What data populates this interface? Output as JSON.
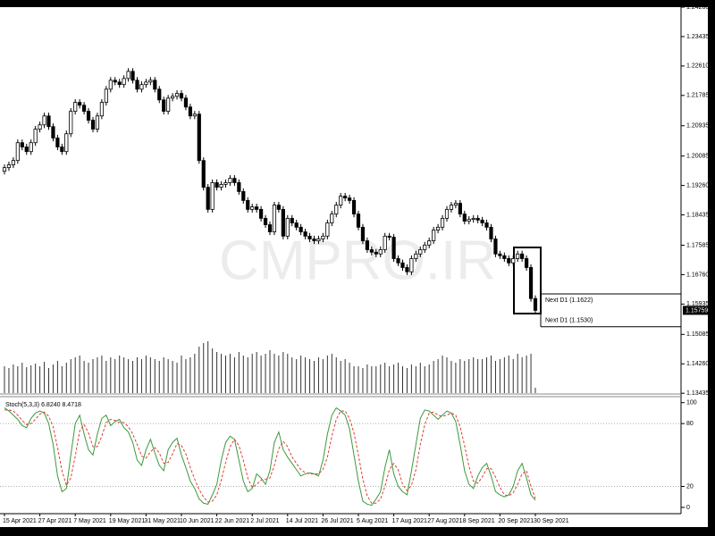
{
  "chart_data": [
    {
      "type": "candlestick",
      "categories": [
        "15 Apr 2021",
        null,
        null,
        null,
        null,
        null,
        null,
        null,
        "27 Apr 2021",
        null,
        null,
        null,
        null,
        null,
        null,
        null,
        "7 May 2021",
        null,
        null,
        null,
        null,
        null,
        null,
        null,
        "19 May 2021",
        null,
        null,
        null,
        null,
        null,
        null,
        null,
        "31 May 2021",
        null,
        null,
        null,
        null,
        null,
        null,
        null,
        "10 Jun 2021",
        null,
        null,
        null,
        null,
        null,
        null,
        null,
        "22 Jun 2021",
        null,
        null,
        null,
        null,
        null,
        null,
        null,
        "2 Jul 2021",
        null,
        null,
        null,
        null,
        null,
        null,
        null,
        "14 Jul 2021",
        null,
        null,
        null,
        null,
        null,
        null,
        null,
        "26 Jul 2021",
        null,
        null,
        null,
        null,
        null,
        null,
        null,
        "5 Aug 2021",
        null,
        null,
        null,
        null,
        null,
        null,
        null,
        "17 Aug 2021",
        null,
        null,
        null,
        null,
        null,
        null,
        null,
        "27 Aug 2021",
        null,
        null,
        null,
        null,
        null,
        null,
        null,
        "8 Sep 2021",
        null,
        null,
        null,
        null,
        null,
        null,
        null,
        "20 Sep 2021",
        null,
        null,
        null,
        null,
        null,
        null,
        null,
        "30 Sep 2021"
      ],
      "open": [
        1.1966,
        1.1976,
        1.1984,
        1.1996,
        1.2046,
        1.2034,
        1.2021,
        1.2046,
        1.2084,
        1.2096,
        1.2121,
        1.2091,
        1.2059,
        1.2034,
        1.2021,
        1.2071,
        1.2134,
        1.2159,
        1.2151,
        1.2134,
        1.2109,
        1.2084,
        1.2121,
        1.2159,
        1.2196,
        1.2221,
        1.2216,
        1.2209,
        1.2226,
        1.2246,
        1.2221,
        1.2196,
        1.2209,
        1.2216,
        1.2221,
        1.2196,
        1.2166,
        1.2134,
        1.2171,
        1.2176,
        1.2184,
        1.2171,
        1.2146,
        1.2121,
        1.2126,
        1.1996,
        1.1921,
        1.1859,
        1.1934,
        1.1921,
        1.1929,
        1.1934,
        1.1946,
        1.1934,
        1.1909,
        1.1884,
        1.1859,
        1.1866,
        1.1859,
        1.1834,
        1.1816,
        1.1796,
        1.1871,
        1.1859,
        1.1784,
        1.1834,
        1.1821,
        1.1809,
        1.1796,
        1.1784,
        1.1776,
        1.1771,
        1.1776,
        1.1784,
        1.1821,
        1.1846,
        1.1871,
        1.1896,
        1.1891,
        1.1884,
        1.1846,
        1.1809,
        1.1771,
        1.1746,
        1.1739,
        1.1734,
        1.1746,
        1.1784,
        1.1781,
        1.1721,
        1.1709,
        1.1696,
        1.1684,
        1.1721,
        1.1734,
        1.1746,
        1.1759,
        1.1771,
        1.1801,
        1.1809,
        1.1834,
        1.1859,
        1.1871,
        1.1876,
        1.1846,
        1.1826,
        1.1831,
        1.1834,
        1.1829,
        1.1821,
        1.1809,
        1.1776,
        1.1734,
        1.1729,
        1.1721,
        1.1709,
        1.1721,
        1.1734,
        1.1721,
        1.1696,
        1.1609
      ],
      "high": [
        1.1985,
        1.1993,
        1.2005,
        1.2055,
        1.2055,
        1.2043,
        1.2055,
        1.2093,
        1.2105,
        1.213,
        1.213,
        1.21,
        1.2068,
        1.2043,
        1.208,
        1.2143,
        1.2168,
        1.2168,
        1.216,
        1.2143,
        1.2118,
        1.213,
        1.2168,
        1.2205,
        1.223,
        1.223,
        1.2225,
        1.2235,
        1.2255,
        1.2255,
        1.223,
        1.2218,
        1.2225,
        1.223,
        1.223,
        1.2205,
        1.2175,
        1.218,
        1.2185,
        1.2193,
        1.2193,
        1.218,
        1.2155,
        1.2135,
        1.2135,
        1.2005,
        1.193,
        1.1943,
        1.1943,
        1.1938,
        1.1943,
        1.1955,
        1.1955,
        1.1943,
        1.1918,
        1.1893,
        1.1875,
        1.1875,
        1.1868,
        1.1843,
        1.1825,
        1.188,
        1.188,
        1.1868,
        1.1843,
        1.1843,
        1.183,
        1.1818,
        1.1805,
        1.1793,
        1.1785,
        1.1785,
        1.1793,
        1.183,
        1.1855,
        1.188,
        1.1905,
        1.1905,
        1.19,
        1.1893,
        1.1855,
        1.1818,
        1.178,
        1.1755,
        1.1748,
        1.1755,
        1.1793,
        1.1793,
        1.179,
        1.173,
        1.1718,
        1.1705,
        1.173,
        1.1743,
        1.1755,
        1.1768,
        1.178,
        1.181,
        1.1818,
        1.1843,
        1.1868,
        1.188,
        1.1885,
        1.1885,
        1.1855,
        1.184,
        1.1843,
        1.1843,
        1.1838,
        1.183,
        1.1818,
        1.1785,
        1.1743,
        1.1738,
        1.173,
        1.173,
        1.1743,
        1.1743,
        1.173,
        1.1705,
        1.1618
      ],
      "low": [
        1.1957,
        1.1967,
        1.1975,
        1.1987,
        1.2025,
        1.2012,
        1.2012,
        1.2037,
        1.2075,
        1.2087,
        1.2082,
        1.205,
        1.2025,
        1.2012,
        1.2012,
        1.2062,
        1.2125,
        1.2142,
        1.2125,
        1.21,
        1.2075,
        1.2075,
        1.2112,
        1.215,
        1.2187,
        1.2207,
        1.22,
        1.22,
        1.2217,
        1.2212,
        1.2187,
        1.2187,
        1.22,
        1.2207,
        1.2187,
        1.2157,
        1.2125,
        1.2125,
        1.2162,
        1.2167,
        1.2162,
        1.2137,
        1.2112,
        1.2112,
        1.1987,
        1.1912,
        1.185,
        1.185,
        1.1912,
        1.1912,
        1.192,
        1.1925,
        1.1925,
        1.19,
        1.1875,
        1.185,
        1.185,
        1.185,
        1.1825,
        1.1807,
        1.1787,
        1.1787,
        1.185,
        1.1775,
        1.1775,
        1.1812,
        1.18,
        1.1787,
        1.1775,
        1.1767,
        1.1762,
        1.1762,
        1.1767,
        1.1775,
        1.1812,
        1.1837,
        1.1862,
        1.1882,
        1.1875,
        1.1837,
        1.18,
        1.1762,
        1.1737,
        1.173,
        1.1725,
        1.1725,
        1.1737,
        1.1772,
        1.1712,
        1.17,
        1.1687,
        1.1675,
        1.1675,
        1.1712,
        1.1725,
        1.1737,
        1.175,
        1.1762,
        1.1792,
        1.18,
        1.1825,
        1.185,
        1.1862,
        1.1837,
        1.1817,
        1.1817,
        1.1822,
        1.182,
        1.1812,
        1.18,
        1.1767,
        1.1725,
        1.172,
        1.1712,
        1.17,
        1.17,
        1.1712,
        1.1712,
        1.1687,
        1.16,
        1.1567
      ],
      "close": [
        1.1976,
        1.1984,
        1.1996,
        1.2046,
        1.2034,
        1.2021,
        1.2046,
        1.2084,
        1.2096,
        1.2121,
        1.2091,
        1.2059,
        1.2034,
        1.2021,
        1.2071,
        1.2134,
        1.2159,
        1.2151,
        1.2134,
        1.2109,
        1.2084,
        1.2121,
        1.2159,
        1.2196,
        1.2221,
        1.2216,
        1.2209,
        1.2226,
        1.2246,
        1.2221,
        1.2196,
        1.2209,
        1.2216,
        1.2221,
        1.2196,
        1.2166,
        1.2134,
        1.2171,
        1.2176,
        1.2184,
        1.2171,
        1.2146,
        1.2121,
        1.2126,
        1.1996,
        1.1921,
        1.1859,
        1.1934,
        1.1921,
        1.1929,
        1.1934,
        1.1946,
        1.1934,
        1.1909,
        1.1884,
        1.1859,
        1.1866,
        1.1859,
        1.1834,
        1.1816,
        1.1796,
        1.1871,
        1.1859,
        1.1784,
        1.1834,
        1.1821,
        1.1809,
        1.1796,
        1.1784,
        1.1776,
        1.1771,
        1.1776,
        1.1784,
        1.1821,
        1.1846,
        1.1871,
        1.1896,
        1.1891,
        1.1884,
        1.1846,
        1.1809,
        1.1771,
        1.1746,
        1.1739,
        1.1734,
        1.1746,
        1.1784,
        1.1781,
        1.1721,
        1.1709,
        1.1696,
        1.1684,
        1.1721,
        1.1734,
        1.1746,
        1.1759,
        1.1771,
        1.1801,
        1.1809,
        1.1834,
        1.1859,
        1.1871,
        1.1876,
        1.1846,
        1.1826,
        1.1831,
        1.1834,
        1.1829,
        1.1821,
        1.1809,
        1.1776,
        1.1734,
        1.1729,
        1.1721,
        1.1709,
        1.1721,
        1.1734,
        1.1721,
        1.1696,
        1.1609,
        1.15759
      ],
      "volume": [
        30,
        28,
        32,
        30,
        34,
        29,
        31,
        33,
        30,
        35,
        28,
        32,
        36,
        30,
        34,
        38,
        40,
        42,
        36,
        34,
        38,
        40,
        42,
        36,
        40,
        38,
        42,
        40,
        38,
        36,
        40,
        38,
        42,
        40,
        38,
        36,
        40,
        38,
        36,
        34,
        42,
        38,
        40,
        44,
        52,
        56,
        58,
        50,
        46,
        44,
        42,
        44,
        40,
        46,
        42,
        40,
        44,
        46,
        42,
        44,
        48,
        44,
        42,
        46,
        44,
        40,
        38,
        42,
        40,
        38,
        36,
        40,
        38,
        42,
        44,
        40,
        36,
        38,
        34,
        30,
        30,
        28,
        32,
        30,
        30,
        32,
        34,
        30,
        32,
        34,
        30,
        28,
        32,
        30,
        34,
        30,
        32,
        36,
        38,
        42,
        40,
        36,
        34,
        38,
        36,
        38,
        40,
        38,
        38,
        40,
        42,
        36,
        38,
        40,
        42,
        38,
        44,
        40,
        42,
        44,
        6
      ],
      "current_label": "1.15759",
      "ylim": [
        1.1344,
        1.2426
      ],
      "yticks": [
        {
          "value": 1.2426,
          "label": "1.24260"
        },
        {
          "value": 1.23435,
          "label": "1.23435"
        },
        {
          "value": 1.2261,
          "label": "1.22610"
        },
        {
          "value": 1.21785,
          "label": "1.21785"
        },
        {
          "value": 1.20935,
          "label": "1.20935"
        },
        {
          "value": 1.20085,
          "label": "1.20085"
        },
        {
          "value": 1.1926,
          "label": "1.19260"
        },
        {
          "value": 1.18435,
          "label": "1.18435"
        },
        {
          "value": 1.17585,
          "label": "1.17585"
        },
        {
          "value": 1.1676,
          "label": "1.16760"
        },
        {
          "value": 1.15935,
          "label": "1.15935"
        },
        {
          "value": 1.15085,
          "label": "1.15085"
        },
        {
          "value": 1.1426,
          "label": "1.14260"
        },
        {
          "value": 1.13435,
          "label": "1.13435"
        }
      ],
      "annotations": [
        {
          "text": "Next D1 (1.1622)",
          "value": 1.1622
        },
        {
          "text": "Next D1 (1.1530)",
          "value": 1.153
        }
      ],
      "watermark": "CMPRO.IR"
    },
    {
      "type": "line",
      "title": "Stoch(5,3,3)",
      "series": [
        {
          "color": "#3a9a3a",
          "values": [
            95,
            92,
            88,
            84,
            78,
            76,
            85,
            90,
            92,
            90,
            80,
            60,
            30,
            15,
            18,
            50,
            80,
            88,
            70,
            55,
            50,
            70,
            85,
            88,
            78,
            82,
            84,
            76,
            72,
            62,
            45,
            40,
            55,
            65,
            52,
            40,
            35,
            55,
            62,
            66,
            50,
            38,
            25,
            18,
            8,
            4,
            3,
            12,
            22,
            45,
            62,
            68,
            65,
            45,
            25,
            15,
            18,
            32,
            28,
            22,
            35,
            62,
            72,
            55,
            48,
            42,
            36,
            30,
            32,
            33,
            32,
            30,
            45,
            70,
            88,
            95,
            92,
            88,
            75,
            50,
            25,
            6,
            3,
            2,
            8,
            15,
            38,
            55,
            32,
            20,
            15,
            12,
            35,
            60,
            85,
            93,
            92,
            88,
            84,
            88,
            92,
            90,
            82,
            60,
            35,
            22,
            18,
            30,
            38,
            42,
            30,
            15,
            12,
            10,
            12,
            20,
            35,
            42,
            28,
            12,
            6.824
          ],
          "current_label": "6.8240"
        },
        {
          "color": "#e0403a",
          "dashed": true,
          "values": [
            93,
            93,
            92,
            88,
            83,
            79,
            80,
            84,
            89,
            91,
            87,
            77,
            57,
            35,
            21,
            28,
            49,
            73,
            79,
            71,
            58,
            58,
            68,
            81,
            84,
            83,
            81,
            81,
            77,
            70,
            60,
            49,
            47,
            53,
            57,
            52,
            42,
            43,
            51,
            61,
            59,
            51,
            38,
            27,
            17,
            10,
            5,
            6,
            12,
            26,
            43,
            58,
            65,
            59,
            45,
            28,
            19,
            22,
            26,
            27,
            28,
            40,
            56,
            63,
            58,
            48,
            42,
            36,
            33,
            32,
            32,
            32,
            36,
            48,
            68,
            84,
            92,
            92,
            85,
            71,
            50,
            27,
            11,
            4,
            4,
            8,
            20,
            36,
            42,
            36,
            22,
            16,
            21,
            36,
            60,
            79,
            90,
            91,
            88,
            87,
            88,
            90,
            88,
            77,
            59,
            39,
            25,
            23,
            29,
            37,
            37,
            29,
            19,
            12,
            11,
            14,
            22,
            32,
            35,
            20,
            8.4718
          ],
          "current_label": "8.4718"
        }
      ],
      "ylim": [
        -6,
        104
      ],
      "yticks": [
        0,
        20,
        80,
        100
      ],
      "grid": true
    }
  ]
}
